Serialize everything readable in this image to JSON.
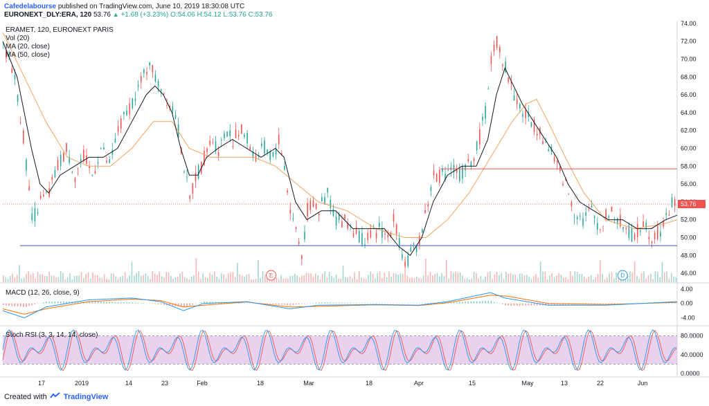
{
  "header": {
    "author": "Cafedelabourse",
    "published": "published on TradingView.com, June 10, 2019 18:30:08 UTC",
    "symbol": "EURONEXT_DLY:ERA, 120",
    "last": "53.76",
    "change": "+1.68 (+3.23%)",
    "o": "O:54.06",
    "h": "H:54.12",
    "l": "L:53.76",
    "c": "C:53.76"
  },
  "legend": {
    "title": "ERAMET, 120, EURONEXT PARIS",
    "vol": "Vol (20)",
    "ma20": "MA (20, close)",
    "ma50": "MA (50, close)",
    "macd": "MACD (12, 26, close, 9)",
    "stoch": "Stoch RSI (3, 3, 14, 14, close)"
  },
  "footer": {
    "created_with": "Created with",
    "brand": "TradingView"
  },
  "colors": {
    "up": "#26a69a",
    "down": "#ef5350",
    "ma20": "#131722",
    "ma50": "#f5a25d",
    "macd": "#2196f3",
    "signal": "#ff6d00",
    "stochK": "#2196f3",
    "stochD": "#ef5350",
    "stochBand": "#e1bee7",
    "resistance": "#ef5350",
    "support": "#3f51b5"
  },
  "chart_data": {
    "type": "candlestick",
    "price_axis_ticks": [
      "74.00",
      "72.00",
      "70.00",
      "68.00",
      "66.00",
      "64.00",
      "62.00",
      "60.00",
      "58.00",
      "56.00",
      "54.00",
      "52.00",
      "50.00",
      "48.00",
      "46.00"
    ],
    "price_ylim": [
      45,
      74.3
    ],
    "last_price_label": "53.76",
    "last_price": 53.76,
    "resistance_level": 57.7,
    "support_level": 49.1,
    "time_labels": [
      "17",
      "2019",
      "14",
      "23",
      "Feb",
      "18",
      "Mar",
      "18",
      "Apr",
      "15",
      "May",
      "13",
      "22",
      "Jun"
    ],
    "event_markers": [
      "E",
      "D"
    ],
    "macd_axis_ticks": [
      "4.00",
      "0.00",
      "-4.00"
    ],
    "macd_ylim": [
      -6,
      5.5
    ],
    "stoch_axis_ticks": [
      "80.0000",
      "40.0000",
      "0.0000"
    ],
    "stoch_ylim": [
      0,
      100
    ],
    "stoch_band": [
      20,
      80
    ],
    "price_path": [
      [
        0,
        71
      ],
      [
        5,
        70
      ],
      [
        10,
        66
      ],
      [
        15,
        60
      ],
      [
        20,
        52
      ],
      [
        26,
        54
      ],
      [
        32,
        55
      ],
      [
        38,
        58
      ],
      [
        44,
        60
      ],
      [
        50,
        57
      ],
      [
        56,
        59
      ],
      [
        62,
        57
      ],
      [
        68,
        60
      ],
      [
        74,
        58
      ],
      [
        80,
        62
      ],
      [
        86,
        64
      ],
      [
        92,
        66
      ],
      [
        98,
        68
      ],
      [
        102,
        70
      ],
      [
        105,
        68
      ],
      [
        110,
        67
      ],
      [
        116,
        65
      ],
      [
        120,
        64
      ],
      [
        126,
        58
      ],
      [
        130,
        54
      ],
      [
        134,
        57
      ],
      [
        138,
        58
      ],
      [
        142,
        60
      ],
      [
        146,
        61
      ],
      [
        150,
        60
      ],
      [
        156,
        62
      ],
      [
        160,
        61
      ],
      [
        166,
        62
      ],
      [
        170,
        61
      ],
      [
        176,
        59
      ],
      [
        182,
        60
      ],
      [
        188,
        59
      ],
      [
        192,
        61
      ],
      [
        196,
        58
      ],
      [
        200,
        53
      ],
      [
        204,
        51
      ],
      [
        208,
        48
      ],
      [
        212,
        53
      ],
      [
        216,
        54
      ],
      [
        220,
        53
      ],
      [
        226,
        55
      ],
      [
        232,
        52
      ],
      [
        238,
        52
      ],
      [
        244,
        51
      ],
      [
        250,
        50
      ],
      [
        256,
        50
      ],
      [
        262,
        51
      ],
      [
        268,
        50
      ],
      [
        272,
        52
      ],
      [
        276,
        50
      ],
      [
        280,
        47
      ],
      [
        284,
        48
      ],
      [
        288,
        49
      ],
      [
        292,
        51
      ],
      [
        296,
        54
      ],
      [
        300,
        57
      ],
      [
        306,
        57
      ],
      [
        312,
        58
      ],
      [
        318,
        57
      ],
      [
        324,
        58
      ],
      [
        330,
        60
      ],
      [
        336,
        64
      ],
      [
        340,
        70
      ],
      [
        344,
        72
      ],
      [
        348,
        70
      ],
      [
        352,
        68
      ],
      [
        356,
        66
      ],
      [
        362,
        64
      ],
      [
        368,
        63
      ],
      [
        374,
        62
      ],
      [
        380,
        60
      ],
      [
        386,
        58
      ],
      [
        392,
        56
      ],
      [
        398,
        53
      ],
      [
        404,
        52
      ],
      [
        410,
        53
      ],
      [
        416,
        51
      ],
      [
        422,
        53
      ],
      [
        428,
        52
      ],
      [
        434,
        51
      ],
      [
        440,
        50
      ],
      [
        446,
        52
      ],
      [
        452,
        50
      ],
      [
        458,
        51
      ],
      [
        462,
        52
      ],
      [
        466,
        54
      ],
      [
        470,
        53.76
      ]
    ],
    "ma20_path": [
      [
        0,
        72
      ],
      [
        10,
        68
      ],
      [
        20,
        60
      ],
      [
        26,
        56
      ],
      [
        32,
        55
      ],
      [
        40,
        57
      ],
      [
        50,
        58
      ],
      [
        60,
        59
      ],
      [
        70,
        59
      ],
      [
        80,
        60
      ],
      [
        90,
        63
      ],
      [
        100,
        66
      ],
      [
        106,
        67
      ],
      [
        112,
        66
      ],
      [
        118,
        64
      ],
      [
        124,
        60
      ],
      [
        130,
        57
      ],
      [
        136,
        57
      ],
      [
        142,
        59
      ],
      [
        150,
        60
      ],
      [
        160,
        61
      ],
      [
        170,
        60
      ],
      [
        180,
        59
      ],
      [
        190,
        60
      ],
      [
        196,
        59
      ],
      [
        204,
        54
      ],
      [
        212,
        52
      ],
      [
        222,
        53
      ],
      [
        232,
        53
      ],
      [
        244,
        51
      ],
      [
        256,
        51
      ],
      [
        266,
        51
      ],
      [
        276,
        49
      ],
      [
        284,
        48
      ],
      [
        292,
        50
      ],
      [
        300,
        54
      ],
      [
        310,
        57
      ],
      [
        320,
        58
      ],
      [
        330,
        58
      ],
      [
        338,
        61
      ],
      [
        344,
        66
      ],
      [
        350,
        69
      ],
      [
        356,
        67
      ],
      [
        362,
        65
      ],
      [
        370,
        63
      ],
      [
        378,
        61
      ],
      [
        386,
        59
      ],
      [
        394,
        56
      ],
      [
        402,
        54
      ],
      [
        412,
        53
      ],
      [
        422,
        52
      ],
      [
        432,
        52
      ],
      [
        442,
        51
      ],
      [
        452,
        51
      ],
      [
        462,
        52
      ],
      [
        470,
        52.5
      ]
    ],
    "ma50_path": [
      [
        0,
        73
      ],
      [
        15,
        68
      ],
      [
        30,
        63
      ],
      [
        45,
        59
      ],
      [
        60,
        58
      ],
      [
        75,
        58
      ],
      [
        90,
        60
      ],
      [
        105,
        63
      ],
      [
        118,
        63
      ],
      [
        130,
        60
      ],
      [
        145,
        59
      ],
      [
        160,
        59
      ],
      [
        175,
        59
      ],
      [
        190,
        58
      ],
      [
        205,
        56
      ],
      [
        220,
        54
      ],
      [
        240,
        53
      ],
      [
        260,
        51
      ],
      [
        280,
        50
      ],
      [
        295,
        50
      ],
      [
        310,
        52
      ],
      [
        325,
        55
      ],
      [
        340,
        59
      ],
      [
        355,
        63
      ],
      [
        365,
        65
      ],
      [
        372,
        65.5
      ],
      [
        380,
        63
      ],
      [
        392,
        59
      ],
      [
        405,
        55
      ],
      [
        420,
        52
      ],
      [
        440,
        51
      ],
      [
        460,
        51.5
      ],
      [
        470,
        52
      ]
    ],
    "volume_note": "histogram under price",
    "macd_path": [
      [
        0,
        -2
      ],
      [
        15,
        -4
      ],
      [
        30,
        -1
      ],
      [
        60,
        1
      ],
      [
        90,
        1.5
      ],
      [
        110,
        0.5
      ],
      [
        126,
        -2
      ],
      [
        140,
        0
      ],
      [
        170,
        0.5
      ],
      [
        200,
        -1.5
      ],
      [
        220,
        -0.5
      ],
      [
        260,
        -0.3
      ],
      [
        290,
        -0.5
      ],
      [
        310,
        0.5
      ],
      [
        340,
        3
      ],
      [
        350,
        1.5
      ],
      [
        380,
        -0.5
      ],
      [
        420,
        -0.5
      ],
      [
        470,
        0.5
      ]
    ],
    "signal_path": [
      [
        0,
        -1.5
      ],
      [
        15,
        -3
      ],
      [
        30,
        -1.5
      ],
      [
        60,
        0.5
      ],
      [
        90,
        1.2
      ],
      [
        110,
        0.8
      ],
      [
        126,
        -1
      ],
      [
        140,
        -0.5
      ],
      [
        170,
        0.4
      ],
      [
        200,
        -1
      ],
      [
        220,
        -0.8
      ],
      [
        260,
        -0.4
      ],
      [
        290,
        -0.6
      ],
      [
        310,
        0.2
      ],
      [
        340,
        2.3
      ],
      [
        352,
        2
      ],
      [
        380,
        0
      ],
      [
        420,
        -0.3
      ],
      [
        470,
        0.3
      ]
    ]
  }
}
